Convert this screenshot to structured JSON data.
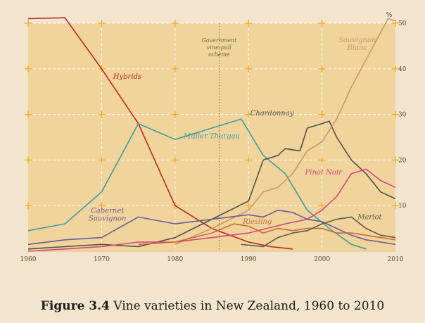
{
  "caption": {
    "number": "Figure 3.4",
    "text": "Vine varieties in New Zealand, 1960 to 2010"
  },
  "colors": {
    "plot_bg": "#f0d49c",
    "page_bg": "#f3e5cd",
    "gridline": "#ffffff",
    "tick_mark": "#f5a818"
  },
  "chart_data": {
    "type": "line",
    "title": "",
    "xlabel": "",
    "ylabel": "",
    "y_unit": "%",
    "xlim": [
      1960,
      2010
    ],
    "ylim": [
      0,
      50
    ],
    "x_ticks": [
      1960,
      1970,
      1980,
      1990,
      2000,
      2010
    ],
    "y_ticks": [
      10,
      20,
      30,
      40,
      50
    ],
    "grid": true,
    "annotations": [
      {
        "x": 1986,
        "text": "Government vine-pull scheme",
        "lines": [
          "Government",
          "vine-pull",
          "scheme"
        ],
        "style": "dotted-vertical"
      }
    ],
    "series": [
      {
        "name": "Hybrids",
        "color": "#b52b22",
        "points": [
          [
            1960,
            51
          ],
          [
            1965,
            51.2
          ],
          [
            1970,
            40
          ],
          [
            1975,
            28
          ],
          [
            1980,
            10
          ],
          [
            1985,
            5
          ],
          [
            1990,
            2
          ],
          [
            1993,
            1
          ],
          [
            1996,
            0.5
          ]
        ]
      },
      {
        "name": "Müller Thurgau",
        "color": "#3e9e9a",
        "points": [
          [
            1960,
            4.5
          ],
          [
            1965,
            6
          ],
          [
            1970,
            13
          ],
          [
            1975,
            28
          ],
          [
            1980,
            24.5
          ],
          [
            1985,
            27
          ],
          [
            1989,
            29
          ],
          [
            1992,
            21
          ],
          [
            1995,
            17
          ],
          [
            1998,
            9
          ],
          [
            2001,
            5
          ],
          [
            2004,
            1.5
          ],
          [
            2006,
            0.5
          ]
        ]
      },
      {
        "name": "Chardonnay",
        "color": "#4e4f4a",
        "points": [
          [
            1960,
            0.5
          ],
          [
            1965,
            1
          ],
          [
            1970,
            1.5
          ],
          [
            1975,
            1
          ],
          [
            1980,
            3
          ],
          [
            1985,
            7
          ],
          [
            1990,
            11
          ],
          [
            1992,
            20
          ],
          [
            1994,
            21
          ],
          [
            1995,
            22.5
          ],
          [
            1997,
            22
          ],
          [
            1998,
            27
          ],
          [
            2000,
            28
          ],
          [
            2001,
            28.5
          ],
          [
            2002,
            25
          ],
          [
            2004,
            20
          ],
          [
            2006,
            17
          ],
          [
            2008,
            13
          ],
          [
            2010,
            11.5
          ]
        ]
      },
      {
        "name": "Sauvignon Blanc",
        "color": "#c9976b",
        "points": [
          [
            1980,
            1.5
          ],
          [
            1985,
            5
          ],
          [
            1990,
            9
          ],
          [
            1992,
            13
          ],
          [
            1994,
            14
          ],
          [
            1996,
            17
          ],
          [
            1998,
            22
          ],
          [
            2000,
            24
          ],
          [
            2002,
            29
          ],
          [
            2004,
            36
          ],
          [
            2006,
            42
          ],
          [
            2008,
            48
          ],
          [
            2009,
            51
          ],
          [
            2010,
            50.5
          ]
        ]
      },
      {
        "name": "Pinot Noir",
        "color": "#d6457d",
        "points": [
          [
            1960,
            0
          ],
          [
            1965,
            0.5
          ],
          [
            1970,
            1
          ],
          [
            1975,
            2
          ],
          [
            1980,
            2
          ],
          [
            1985,
            3
          ],
          [
            1990,
            4
          ],
          [
            1995,
            6
          ],
          [
            1998,
            7
          ],
          [
            2000,
            9
          ],
          [
            2002,
            12
          ],
          [
            2004,
            17
          ],
          [
            2006,
            18
          ],
          [
            2008,
            15.5
          ],
          [
            2010,
            14
          ]
        ]
      },
      {
        "name": "Cabernet Sauvignon",
        "color": "#6e5a9a",
        "points": [
          [
            1960,
            1.5
          ],
          [
            1965,
            2.5
          ],
          [
            1970,
            3
          ],
          [
            1975,
            7.5
          ],
          [
            1980,
            6
          ],
          [
            1985,
            7
          ],
          [
            1990,
            8
          ],
          [
            1992,
            7.5
          ],
          [
            1994,
            9
          ],
          [
            1996,
            8.5
          ],
          [
            1998,
            7
          ],
          [
            2000,
            6.5
          ],
          [
            2002,
            5
          ],
          [
            2004,
            3.5
          ],
          [
            2006,
            2.5
          ],
          [
            2008,
            2
          ],
          [
            2010,
            1.5
          ]
        ]
      },
      {
        "name": "Riesling",
        "color": "#c86a3a",
        "points": [
          [
            1975,
            1.5
          ],
          [
            1980,
            2
          ],
          [
            1985,
            4
          ],
          [
            1988,
            6
          ],
          [
            1990,
            5.5
          ],
          [
            1992,
            4
          ],
          [
            1994,
            5
          ],
          [
            1996,
            4.5
          ],
          [
            1998,
            5
          ],
          [
            2000,
            5
          ],
          [
            2002,
            4
          ],
          [
            2004,
            4
          ],
          [
            2006,
            3.5
          ],
          [
            2008,
            3
          ],
          [
            2010,
            2.5
          ]
        ]
      },
      {
        "name": "Merlot",
        "color": "#5a5a4a",
        "points": [
          [
            1989,
            1.5
          ],
          [
            1992,
            1
          ],
          [
            1994,
            3
          ],
          [
            1996,
            4
          ],
          [
            1998,
            4.5
          ],
          [
            2000,
            6
          ],
          [
            2002,
            7
          ],
          [
            2004,
            7.5
          ],
          [
            2006,
            5
          ],
          [
            2008,
            3.5
          ],
          [
            2010,
            3
          ]
        ]
      }
    ],
    "series_labels": [
      {
        "series": "Hybrids",
        "text": "Hybrids"
      },
      {
        "series": "Müller Thurgau",
        "text": "Müller Thurgau"
      },
      {
        "series": "Chardonnay",
        "text": "Chardonnay"
      },
      {
        "series": "Sauvignon Blanc",
        "text": "Sauvignon Blanc",
        "lines": [
          "Sauvignon",
          "Blanc"
        ]
      },
      {
        "series": "Pinot Noir",
        "text": "Pinot Noir"
      },
      {
        "series": "Cabernet Sauvignon",
        "text": "Cabernet Sauvignon",
        "lines": [
          "Cabernet",
          "Sauvignon"
        ]
      },
      {
        "series": "Riesling",
        "text": "Riesling"
      },
      {
        "series": "Merlot",
        "text": "Merlot"
      }
    ]
  }
}
